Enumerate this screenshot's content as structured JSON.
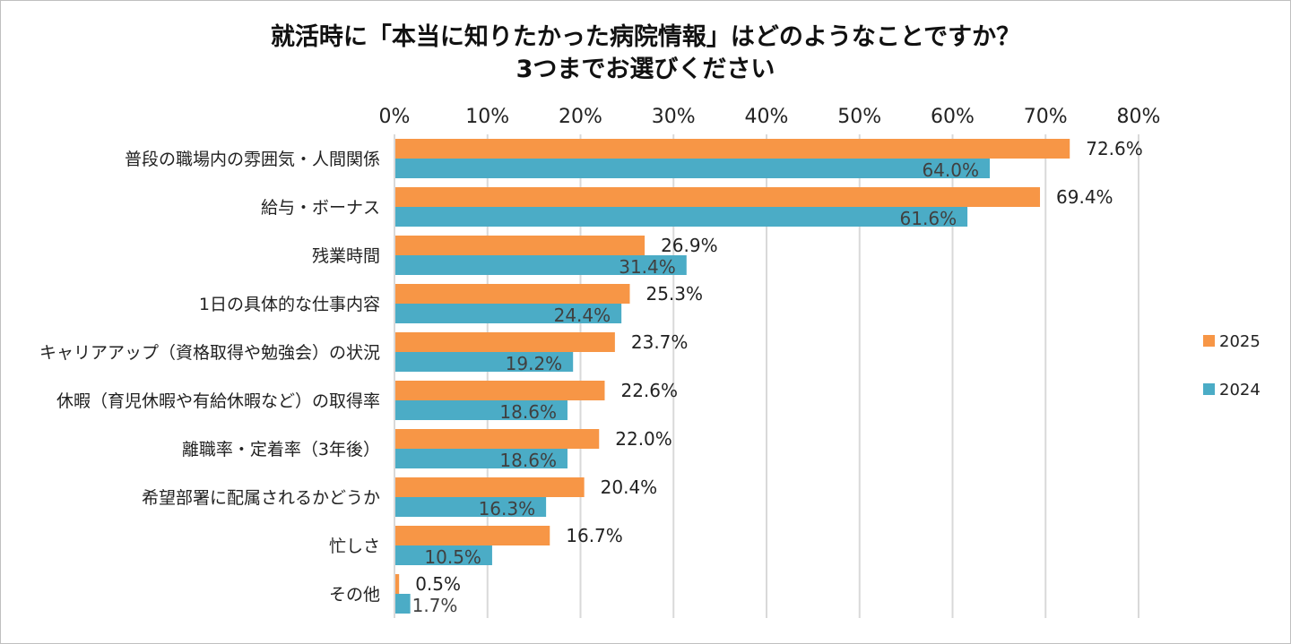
{
  "chart_data": {
    "type": "bar",
    "orientation": "horizontal",
    "title_line1": "就活時に「本当に知りたかった病院情報」はどのようなことですか？",
    "title_line2": "3つまでお選びください",
    "categories": [
      "普段の職場内の雰囲気・人間関係",
      "給与・ボーナス",
      "残業時間",
      "1日の具体的な仕事内容",
      "キャリアアップ（資格取得や勉強会）の状況",
      "休暇（育児休暇や有給休暇など）の取得率",
      "離職率・定着率（3年後）",
      "希望部署に配属されるかどうか",
      "忙しさ",
      "その他"
    ],
    "series": [
      {
        "name": "2025",
        "color": "#f79646",
        "values": [
          72.6,
          69.4,
          26.9,
          25.3,
          23.7,
          22.6,
          22.0,
          20.4,
          16.7,
          0.5
        ]
      },
      {
        "name": "2024",
        "color": "#4bacc6",
        "values": [
          64.0,
          61.6,
          31.4,
          24.4,
          19.2,
          18.6,
          18.6,
          16.3,
          10.5,
          1.7
        ]
      }
    ],
    "xlim": [
      0,
      80
    ],
    "xticks": [
      "0%",
      "10%",
      "20%",
      "30%",
      "40%",
      "50%",
      "60%",
      "70%",
      "80%"
    ],
    "value_suffix": "%",
    "grid": true,
    "legend_position": "right"
  }
}
